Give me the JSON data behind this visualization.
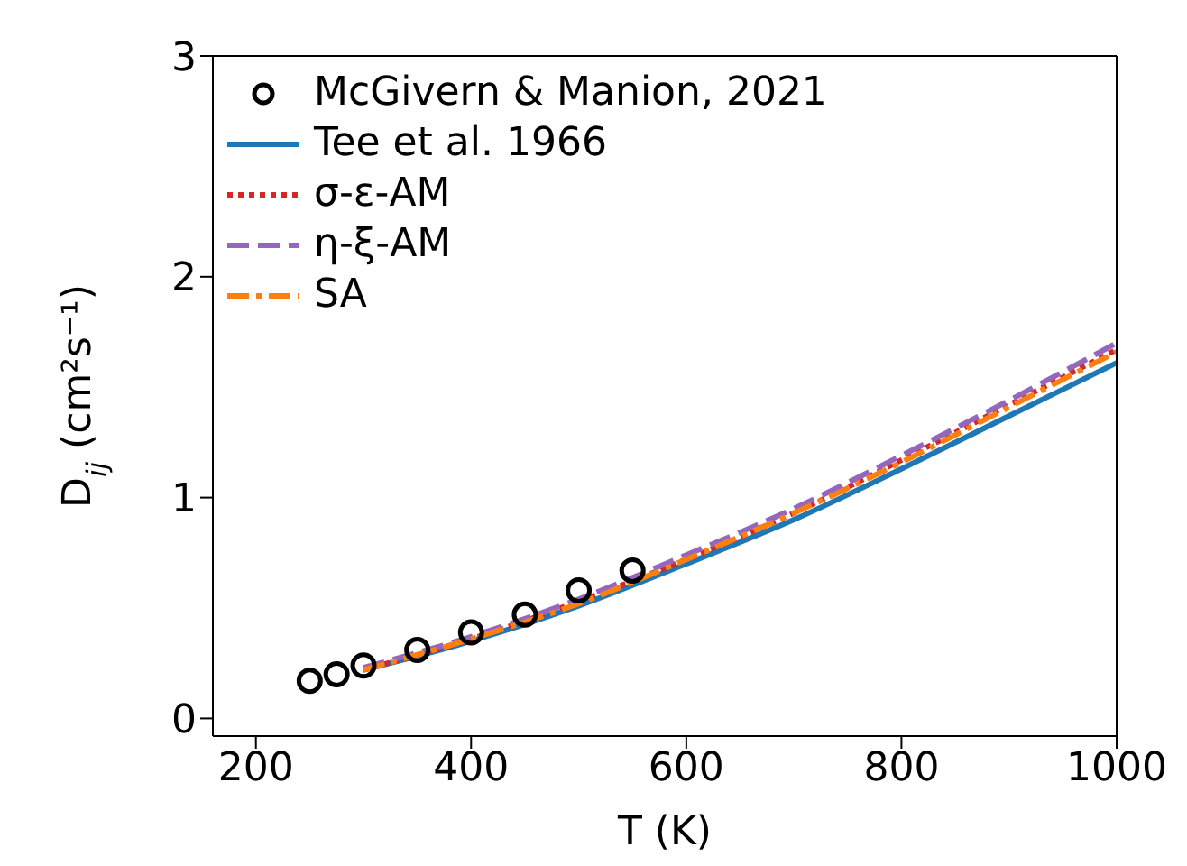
{
  "chart_data": {
    "type": "line",
    "xlabel": "T (K)",
    "ylabel": "D$_{ij}$ (cm²s⁻¹)",
    "xlim": [
      160,
      1000
    ],
    "xticks": [
      200,
      400,
      600,
      800,
      1000
    ],
    "ylim": [
      -0.08,
      3
    ],
    "yticks": [
      0,
      1,
      2,
      3
    ],
    "legend": "top left",
    "series": [
      {
        "name": "McGivern & Manion, 2021",
        "type": "scatter",
        "marker": "circle",
        "color": "#000000",
        "x": [
          250,
          275,
          300,
          350,
          400,
          450,
          500,
          550
        ],
        "values": [
          0.17,
          0.2,
          0.24,
          0.31,
          0.39,
          0.47,
          0.58,
          0.67
        ]
      },
      {
        "name": "Tee et al. 1966",
        "color": "#1f77b4",
        "line_style": "solid",
        "x": [
          300,
          400,
          500,
          600,
          700,
          800,
          900,
          1000
        ],
        "values": [
          0.22,
          0.35,
          0.51,
          0.7,
          0.9,
          1.13,
          1.37,
          1.61
        ]
      },
      {
        "name": "σ-ε-AM",
        "color": "#d62728",
        "line_style": "dotted",
        "x": [
          300,
          400,
          500,
          600,
          700,
          800,
          900,
          1000
        ],
        "values": [
          0.22,
          0.36,
          0.53,
          0.72,
          0.93,
          1.17,
          1.42,
          1.67
        ]
      },
      {
        "name": "η-ξ-AM",
        "color": "#9467bd",
        "line_style": "dashed",
        "x": [
          300,
          400,
          500,
          600,
          700,
          800,
          900,
          1000
        ],
        "values": [
          0.23,
          0.37,
          0.54,
          0.74,
          0.95,
          1.19,
          1.44,
          1.7
        ]
      },
      {
        "name": "SA",
        "color": "#ff7f0e",
        "line_style": "dashdot",
        "x": [
          300,
          400,
          500,
          600,
          700,
          800,
          900,
          1000
        ],
        "values": [
          0.22,
          0.36,
          0.52,
          0.72,
          0.93,
          1.16,
          1.41,
          1.66
        ]
      }
    ]
  }
}
